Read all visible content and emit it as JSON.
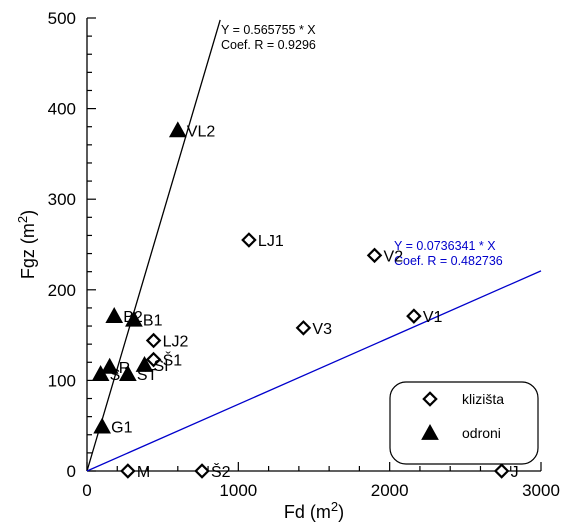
{
  "chart_data": {
    "type": "scatter",
    "xlabel": "Fd",
    "xunit": "(m²)",
    "ylabel": "Fgz",
    "yunit": "(m²)",
    "xlim": [
      0,
      3000
    ],
    "ylim": [
      0,
      500
    ],
    "xticks": [
      0,
      1000,
      2000,
      3000
    ],
    "yticks": [
      0,
      100,
      200,
      300,
      400,
      500
    ],
    "series": [
      {
        "name": "klizišta",
        "marker": "diamond-open",
        "color": "#000000",
        "points": [
          {
            "label": "LJ1",
            "x": 1070,
            "y": 255
          },
          {
            "label": "V2",
            "x": 1900,
            "y": 238
          },
          {
            "label": "V1",
            "x": 2160,
            "y": 171
          },
          {
            "label": "V3",
            "x": 1430,
            "y": 158
          },
          {
            "label": "LJ2",
            "x": 440,
            "y": 144
          },
          {
            "label": "Š1",
            "x": 440,
            "y": 123
          },
          {
            "label": "M",
            "x": 270,
            "y": 0
          },
          {
            "label": "Š2",
            "x": 760,
            "y": 0
          },
          {
            "label": "J",
            "x": 2740,
            "y": 0
          }
        ]
      },
      {
        "name": "odroni",
        "marker": "triangle-filled",
        "color": "#000000",
        "points": [
          {
            "label": "VL2",
            "x": 600,
            "y": 376
          },
          {
            "label": "B2",
            "x": 180,
            "y": 171
          },
          {
            "label": "B1",
            "x": 310,
            "y": 167
          },
          {
            "label": "G1",
            "x": 100,
            "y": 49
          },
          {
            "label": "R",
            "x": 150,
            "y": 115
          },
          {
            "label": "S",
            "x": 90,
            "y": 107
          },
          {
            "label": "ST",
            "x": 270,
            "y": 107
          },
          {
            "label": "SI",
            "x": 380,
            "y": 117
          }
        ]
      }
    ],
    "fit_lines": [
      {
        "series": "odroni",
        "slope": 0.565755,
        "x_end": 880,
        "color": "#000000",
        "equation": "Y = 0.565755 * X",
        "coef": "Coef. R = 0.9296"
      },
      {
        "series": "klizišta",
        "slope": 0.0736341,
        "x_end": 3000,
        "color": "#0000cc",
        "equation": "Y = 0.0736341 * X",
        "coef": "Coef. R = 0.482736"
      }
    ],
    "legend": {
      "position": "bottom-right",
      "entries": [
        "klizišta",
        "odroni"
      ]
    }
  }
}
